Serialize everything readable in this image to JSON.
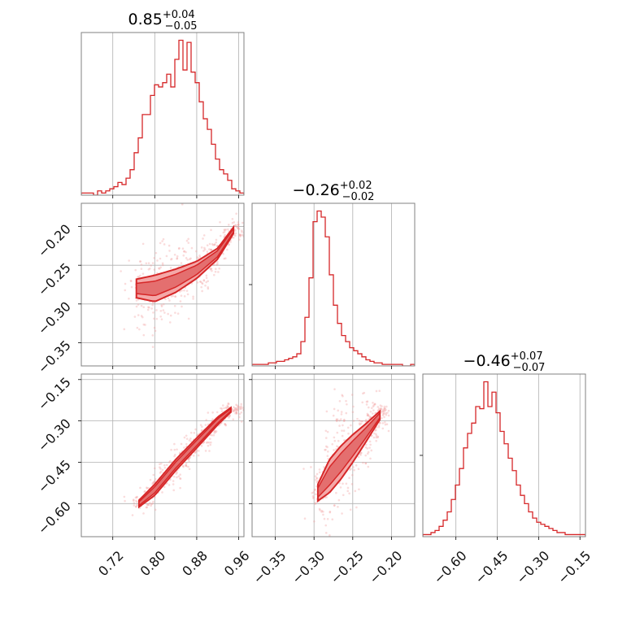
{
  "chart_data": {
    "type": "corner",
    "color": "#d62728",
    "shade_color": "#f4a8a8",
    "grid": true,
    "parameters": [
      {
        "label": "",
        "title": "0.85",
        "title_plus": "+0.04",
        "title_minus": "−0.05",
        "median": 0.85,
        "range": [
          0.66,
          0.97
        ]
      },
      {
        "label": "",
        "title": "−0.26",
        "title_plus": "+0.02",
        "title_minus": "−0.02",
        "median": -0.26,
        "range": [
          -0.38,
          -0.17
        ]
      },
      {
        "label": "",
        "title": "−0.46",
        "title_plus": "+0.07",
        "title_minus": "−0.07",
        "median": -0.46,
        "range": [
          -0.72,
          -0.13
        ]
      }
    ],
    "ticks": {
      "p0": {
        "values": [
          0.72,
          0.8,
          0.88,
          0.96
        ],
        "labels": [
          "0.72",
          "0.80",
          "0.88",
          "0.96"
        ]
      },
      "p1": {
        "values": [
          -0.35,
          -0.3,
          -0.25,
          -0.2
        ],
        "labels": [
          "−0.35",
          "−0.30",
          "−0.25",
          "−0.20"
        ]
      },
      "p2": {
        "values": [
          -0.6,
          -0.45,
          -0.3,
          -0.15
        ],
        "labels": [
          "−0.60",
          "−0.45",
          "−0.30",
          "−0.15"
        ]
      }
    },
    "histograms": [
      {
        "param": 0,
        "bin_edges_range": [
          0.66,
          0.97
        ],
        "counts": [
          1,
          1,
          1,
          0,
          2,
          1,
          2,
          3,
          4,
          6,
          5,
          8,
          12,
          20,
          27,
          38,
          38,
          47,
          52,
          51,
          53,
          57,
          51,
          64,
          73,
          59,
          72,
          58,
          53,
          44,
          36,
          31,
          24,
          17,
          12,
          10,
          7,
          3,
          2,
          1
        ]
      },
      {
        "param": 1,
        "bin_edges_range": [
          -0.38,
          -0.17
        ],
        "counts": [
          1,
          1,
          1,
          1,
          2,
          2,
          3,
          3,
          4,
          5,
          6,
          8,
          16,
          32,
          58,
          95,
          102,
          98,
          85,
          60,
          40,
          28,
          20,
          16,
          12,
          10,
          8,
          6,
          4,
          3,
          2,
          2,
          1,
          1,
          1,
          1,
          1,
          0,
          0,
          1
        ]
      },
      {
        "param": 2,
        "bin_edges_range": [
          -0.72,
          -0.13
        ],
        "counts": [
          1,
          1,
          2,
          3,
          5,
          8,
          12,
          18,
          25,
          33,
          43,
          50,
          55,
          63,
          62,
          75,
          63,
          70,
          60,
          51,
          45,
          38,
          32,
          25,
          20,
          16,
          12,
          9,
          7,
          6,
          5,
          4,
          3,
          2,
          2,
          1,
          1,
          1,
          1,
          1
        ]
      }
    ],
    "contours_2d": [
      {
        "x_param": 0,
        "y_param": 1,
        "ridge_x": [
          0.765,
          0.8,
          0.84,
          0.88,
          0.92,
          0.95
        ],
        "ridge_y": [
          -0.28,
          -0.28,
          -0.27,
          -0.256,
          -0.235,
          -0.205
        ],
        "half_width_y": [
          0.012,
          0.017,
          0.015,
          0.011,
          0.007,
          0.004
        ]
      },
      {
        "x_param": 0,
        "y_param": 2,
        "ridge_x": [
          0.77,
          0.8,
          0.84,
          0.88,
          0.92,
          0.945
        ],
        "ridge_y": [
          -0.6,
          -0.55,
          -0.46,
          -0.38,
          -0.3,
          -0.26
        ],
        "half_width_y": [
          0.012,
          0.02,
          0.02,
          0.018,
          0.014,
          0.008
        ]
      },
      {
        "x_param": 1,
        "y_param": 2,
        "ridge_x": [
          -0.295,
          -0.28,
          -0.265,
          -0.25,
          -0.235,
          -0.215
        ],
        "ridge_y": [
          -0.56,
          -0.5,
          -0.45,
          -0.4,
          -0.35,
          -0.28
        ],
        "half_width_y": [
          0.03,
          0.06,
          0.06,
          0.05,
          0.035,
          0.015
        ]
      }
    ]
  }
}
